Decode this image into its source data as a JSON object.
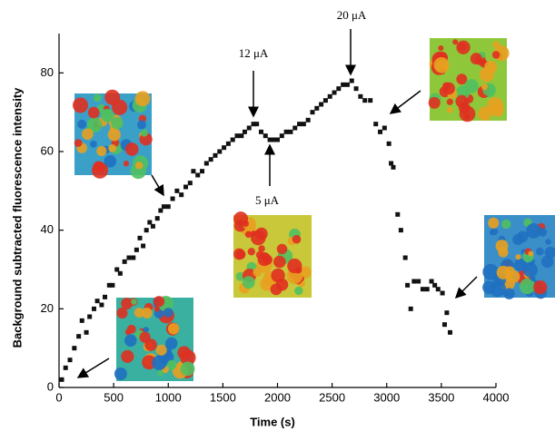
{
  "chart_data": {
    "type": "scatter",
    "xlabel": "Time (s)",
    "ylabel": "Background subtracted fluorescence intensity",
    "annotations": [
      "12 μA",
      "5 μA",
      "20 μA"
    ],
    "color": "#111111",
    "xlim": [
      0,
      4000
    ],
    "xticks": [
      0,
      500,
      1000,
      1500,
      2000,
      2500,
      3000,
      3500,
      4000
    ],
    "ylim": [
      0,
      90
    ],
    "yticks": [
      0,
      20,
      40,
      60,
      80
    ],
    "x": [
      25,
      60,
      100,
      140,
      180,
      210,
      250,
      280,
      320,
      350,
      390,
      420,
      460,
      490,
      530,
      560,
      600,
      640,
      680,
      710,
      740,
      770,
      800,
      830,
      860,
      900,
      930,
      960,
      1000,
      1040,
      1080,
      1120,
      1160,
      1200,
      1230,
      1270,
      1310,
      1350,
      1390,
      1430,
      1470,
      1510,
      1550,
      1590,
      1630,
      1670,
      1700,
      1740,
      1780,
      1810,
      1850,
      1890,
      1930,
      1960,
      2000,
      2040,
      2080,
      2120,
      2160,
      2200,
      2240,
      2280,
      2320,
      2360,
      2400,
      2440,
      2480,
      2520,
      2560,
      2600,
      2640,
      2680,
      2720,
      2760,
      2800,
      2850,
      2900,
      2940,
      2980,
      3020,
      3040,
      3060,
      3100,
      3130,
      3170,
      3190,
      3220,
      3250,
      3290,
      3330,
      3370,
      3410,
      3440,
      3470,
      3510,
      3530,
      3550,
      3580
    ],
    "y": [
      2,
      5,
      7,
      10,
      13,
      17,
      14,
      18,
      20,
      22,
      21,
      23,
      26,
      26,
      30,
      29,
      32,
      33,
      33,
      35,
      38,
      36,
      40,
      42,
      41,
      43,
      45,
      46,
      46,
      48,
      50,
      49,
      51,
      52,
      55,
      54,
      55,
      57,
      58,
      59,
      60,
      61,
      62,
      63,
      64,
      64,
      65,
      66,
      67,
      67,
      65,
      64,
      63,
      63,
      63,
      64,
      65,
      65,
      66,
      67,
      67,
      68,
      70,
      71,
      72,
      73,
      74,
      75,
      76,
      77,
      77,
      78,
      76,
      74,
      73,
      73,
      67,
      65,
      66,
      62,
      57,
      56,
      44,
      40,
      33,
      26,
      20,
      27,
      27,
      25,
      25,
      27,
      26,
      25,
      24,
      16,
      19,
      14
    ]
  }
}
